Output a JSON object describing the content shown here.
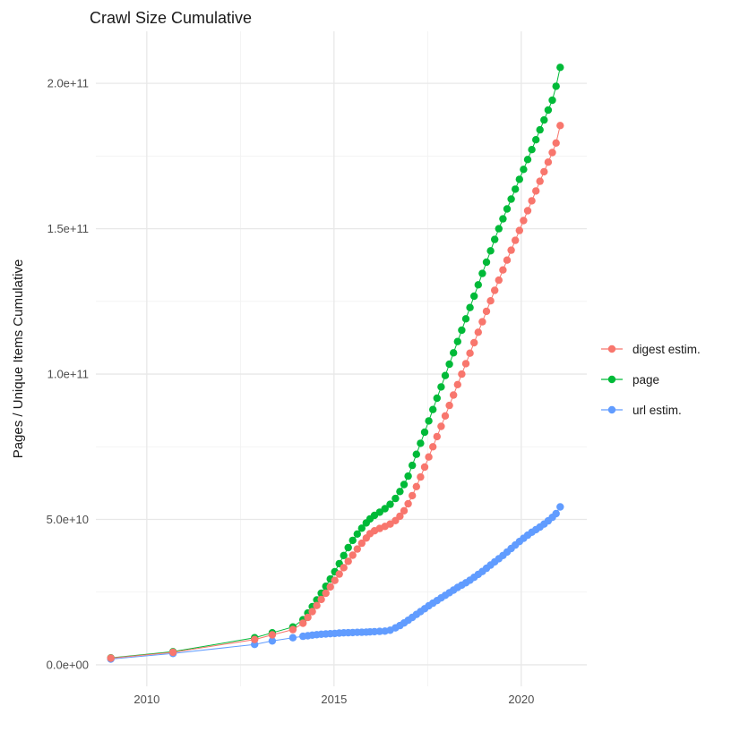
{
  "chart_data": {
    "type": "scatter",
    "title": "Crawl Size Cumulative",
    "xlabel": "",
    "ylabel": "Pages / Unique Items Cumulative",
    "value_unit": "1e9 (values below are in billions)",
    "grid": "on",
    "legend_position": "right",
    "x_axis": {
      "domain": [
        2008.64,
        2021.75
      ],
      "ticks": [
        2010,
        2015,
        2020
      ],
      "tick_labels": [
        "2010",
        "2015",
        "2020"
      ],
      "minor_ticks": [
        2012.5,
        2017.5
      ]
    },
    "y_axis": {
      "domain": [
        -7.4,
        217.9
      ],
      "ticks": [
        0,
        50,
        100,
        150,
        200
      ],
      "tick_labels": [
        "0.0e+00",
        "5.0e+10",
        "1.0e+11",
        "1.5e+11",
        "2.0e+11"
      ],
      "minor_ticks": [
        25,
        75,
        125,
        175
      ]
    },
    "series": [
      {
        "name": "digest estim.",
        "color": "#F8766D",
        "points": [
          [
            2009.04,
            2.3
          ],
          [
            2010.7,
            4.3
          ],
          [
            2012.88,
            8.7
          ],
          [
            2013.35,
            10.3
          ],
          [
            2013.9,
            12.1
          ],
          [
            2014.17,
            14.3
          ],
          [
            2014.3,
            16.3
          ],
          [
            2014.42,
            18.3
          ],
          [
            2014.54,
            20.4
          ],
          [
            2014.66,
            22.5
          ],
          [
            2014.78,
            24.6
          ],
          [
            2014.9,
            26.8
          ],
          [
            2015.02,
            29.0
          ],
          [
            2015.14,
            31.2
          ],
          [
            2015.26,
            33.4
          ],
          [
            2015.38,
            35.6
          ],
          [
            2015.5,
            37.7
          ],
          [
            2015.62,
            39.8
          ],
          [
            2015.74,
            41.8
          ],
          [
            2015.86,
            43.6
          ],
          [
            2015.96,
            45.1
          ],
          [
            2016.08,
            46.1
          ],
          [
            2016.22,
            46.9
          ],
          [
            2016.36,
            47.6
          ],
          [
            2016.5,
            48.4
          ],
          [
            2016.64,
            49.6
          ],
          [
            2016.76,
            51.1
          ],
          [
            2016.87,
            53.0
          ],
          [
            2016.98,
            55.4
          ],
          [
            2017.09,
            58.2
          ],
          [
            2017.2,
            61.3
          ],
          [
            2017.31,
            64.6
          ],
          [
            2017.42,
            68.0
          ],
          [
            2017.53,
            71.5
          ],
          [
            2017.64,
            75.0
          ],
          [
            2017.75,
            78.5
          ],
          [
            2017.86,
            82.0
          ],
          [
            2017.97,
            85.6
          ],
          [
            2018.08,
            89.2
          ],
          [
            2018.19,
            92.8
          ],
          [
            2018.3,
            96.4
          ],
          [
            2018.41,
            100.0
          ],
          [
            2018.52,
            103.6
          ],
          [
            2018.63,
            107.2
          ],
          [
            2018.74,
            110.8
          ],
          [
            2018.85,
            114.4
          ],
          [
            2018.96,
            118.0
          ],
          [
            2019.07,
            121.6
          ],
          [
            2019.18,
            125.2
          ],
          [
            2019.29,
            128.8
          ],
          [
            2019.4,
            132.3
          ],
          [
            2019.51,
            135.8
          ],
          [
            2019.62,
            139.2
          ],
          [
            2019.73,
            142.6
          ],
          [
            2019.84,
            146.0
          ],
          [
            2019.95,
            149.4
          ],
          [
            2020.06,
            152.8
          ],
          [
            2020.17,
            156.2
          ],
          [
            2020.28,
            159.6
          ],
          [
            2020.39,
            163.0
          ],
          [
            2020.5,
            166.3
          ],
          [
            2020.61,
            169.6
          ],
          [
            2020.72,
            172.9
          ],
          [
            2020.83,
            176.2
          ],
          [
            2020.93,
            179.5
          ],
          [
            2021.04,
            185.5
          ]
        ]
      },
      {
        "name": "page",
        "color": "#00BA38",
        "points": [
          [
            2009.04,
            2.4
          ],
          [
            2010.7,
            4.5
          ],
          [
            2012.88,
            9.3
          ],
          [
            2013.35,
            11.0
          ],
          [
            2013.9,
            13.0
          ],
          [
            2014.17,
            15.5
          ],
          [
            2014.3,
            17.8
          ],
          [
            2014.42,
            20.0
          ],
          [
            2014.54,
            22.3
          ],
          [
            2014.66,
            24.6
          ],
          [
            2014.78,
            27.0
          ],
          [
            2014.9,
            29.5
          ],
          [
            2015.02,
            32.0
          ],
          [
            2015.14,
            34.8
          ],
          [
            2015.26,
            37.6
          ],
          [
            2015.38,
            40.3
          ],
          [
            2015.5,
            42.8
          ],
          [
            2015.62,
            45.0
          ],
          [
            2015.74,
            47.0
          ],
          [
            2015.86,
            48.8
          ],
          [
            2015.96,
            50.2
          ],
          [
            2016.08,
            51.4
          ],
          [
            2016.22,
            52.5
          ],
          [
            2016.36,
            53.7
          ],
          [
            2016.5,
            55.2
          ],
          [
            2016.64,
            57.2
          ],
          [
            2016.76,
            59.6
          ],
          [
            2016.87,
            62.0
          ],
          [
            2016.98,
            64.9
          ],
          [
            2017.09,
            68.6
          ],
          [
            2017.2,
            72.4
          ],
          [
            2017.31,
            76.2
          ],
          [
            2017.42,
            80.0
          ],
          [
            2017.53,
            83.9
          ],
          [
            2017.64,
            87.8
          ],
          [
            2017.75,
            91.7
          ],
          [
            2017.86,
            95.6
          ],
          [
            2017.97,
            99.5
          ],
          [
            2018.08,
            103.4
          ],
          [
            2018.19,
            107.3
          ],
          [
            2018.3,
            111.2
          ],
          [
            2018.41,
            115.1
          ],
          [
            2018.52,
            119.0
          ],
          [
            2018.63,
            122.9
          ],
          [
            2018.74,
            126.8
          ],
          [
            2018.85,
            130.7
          ],
          [
            2018.96,
            134.6
          ],
          [
            2019.07,
            138.5
          ],
          [
            2019.18,
            142.4
          ],
          [
            2019.29,
            146.3
          ],
          [
            2019.4,
            150.0
          ],
          [
            2019.51,
            153.4
          ],
          [
            2019.62,
            156.8
          ],
          [
            2019.73,
            160.2
          ],
          [
            2019.84,
            163.6
          ],
          [
            2019.95,
            167.0
          ],
          [
            2020.06,
            170.4
          ],
          [
            2020.17,
            173.8
          ],
          [
            2020.28,
            177.2
          ],
          [
            2020.39,
            180.6
          ],
          [
            2020.5,
            184.0
          ],
          [
            2020.61,
            187.4
          ],
          [
            2020.72,
            190.8
          ],
          [
            2020.83,
            194.2
          ],
          [
            2020.93,
            199.0
          ],
          [
            2021.04,
            205.5
          ]
        ]
      },
      {
        "name": "url estim.",
        "color": "#619CFF",
        "points": [
          [
            2009.04,
            2.0
          ],
          [
            2010.7,
            3.9
          ],
          [
            2012.88,
            7.0
          ],
          [
            2013.35,
            8.2
          ],
          [
            2013.9,
            9.3
          ],
          [
            2014.17,
            9.8
          ],
          [
            2014.3,
            10.0
          ],
          [
            2014.42,
            10.2
          ],
          [
            2014.54,
            10.35
          ],
          [
            2014.66,
            10.5
          ],
          [
            2014.78,
            10.6
          ],
          [
            2014.9,
            10.7
          ],
          [
            2015.02,
            10.8
          ],
          [
            2015.14,
            10.9
          ],
          [
            2015.26,
            11.0
          ],
          [
            2015.38,
            11.05
          ],
          [
            2015.5,
            11.1
          ],
          [
            2015.62,
            11.15
          ],
          [
            2015.74,
            11.2
          ],
          [
            2015.86,
            11.25
          ],
          [
            2015.96,
            11.3
          ],
          [
            2016.08,
            11.4
          ],
          [
            2016.22,
            11.5
          ],
          [
            2016.36,
            11.6
          ],
          [
            2016.5,
            11.9
          ],
          [
            2016.64,
            12.7
          ],
          [
            2016.76,
            13.5
          ],
          [
            2016.87,
            14.4
          ],
          [
            2016.98,
            15.3
          ],
          [
            2017.09,
            16.3
          ],
          [
            2017.2,
            17.3
          ],
          [
            2017.31,
            18.3
          ],
          [
            2017.42,
            19.3
          ],
          [
            2017.53,
            20.3
          ],
          [
            2017.64,
            21.2
          ],
          [
            2017.75,
            22.1
          ],
          [
            2017.86,
            23.0
          ],
          [
            2017.97,
            23.9
          ],
          [
            2018.08,
            24.8
          ],
          [
            2018.19,
            25.7
          ],
          [
            2018.3,
            26.6
          ],
          [
            2018.41,
            27.4
          ],
          [
            2018.52,
            28.2
          ],
          [
            2018.63,
            29.1
          ],
          [
            2018.74,
            30.1
          ],
          [
            2018.85,
            31.1
          ],
          [
            2018.96,
            32.1
          ],
          [
            2019.07,
            33.2
          ],
          [
            2019.18,
            34.3
          ],
          [
            2019.29,
            35.4
          ],
          [
            2019.4,
            36.5
          ],
          [
            2019.51,
            37.6
          ],
          [
            2019.62,
            38.8
          ],
          [
            2019.73,
            40.0
          ],
          [
            2019.84,
            41.2
          ],
          [
            2019.95,
            42.4
          ],
          [
            2020.06,
            43.5
          ],
          [
            2020.17,
            44.6
          ],
          [
            2020.28,
            45.6
          ],
          [
            2020.39,
            46.5
          ],
          [
            2020.5,
            47.4
          ],
          [
            2020.61,
            48.4
          ],
          [
            2020.72,
            49.5
          ],
          [
            2020.83,
            50.7
          ],
          [
            2020.93,
            52.0
          ],
          [
            2021.04,
            54.3
          ]
        ]
      }
    ],
    "style": {
      "background": "#ffffff",
      "grid_major_color": "#e8e8e8",
      "grid_minor_color": "#f1f1f1",
      "tick_label_color": "#4d4d4d",
      "text_color": "#1a1a1a"
    }
  }
}
